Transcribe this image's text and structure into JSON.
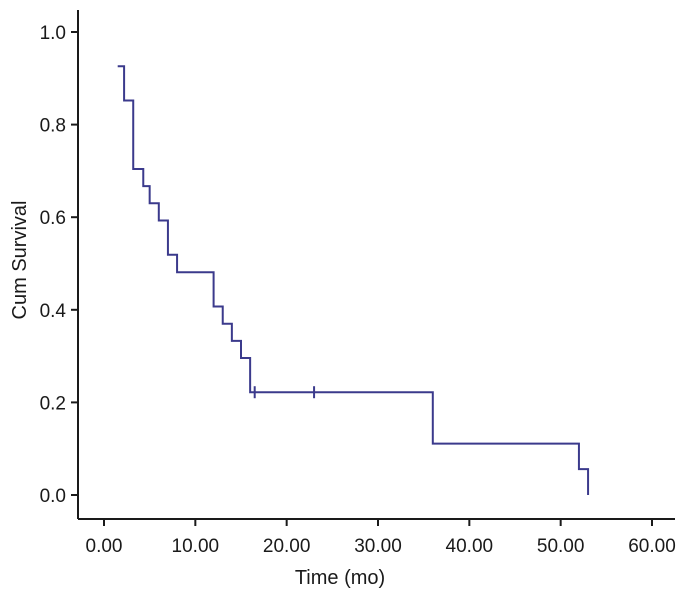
{
  "chart_data": {
    "type": "line",
    "subtype": "kaplan-meier-step",
    "title": "",
    "xlabel": "Time (mo)",
    "ylabel": "Cum Survival",
    "xlim": [
      0,
      60
    ],
    "ylim": [
      0,
      1.0
    ],
    "x_ticks": [
      "0.00",
      "10.00",
      "20.00",
      "30.00",
      "40.00",
      "50.00",
      "60.00"
    ],
    "y_ticks": [
      "0.0",
      "0.2",
      "0.4",
      "0.6",
      "0.8",
      "1.0"
    ],
    "grid": false,
    "legend": "none",
    "line_color": "#3b3a8c",
    "axis_color": "#1a1a1a",
    "series": [
      {
        "steps": [
          {
            "x": 1.5,
            "y": 0.926
          },
          {
            "x": 2.2,
            "y": 0.852
          },
          {
            "x": 3.2,
            "y": 0.704
          },
          {
            "x": 4.3,
            "y": 0.667
          },
          {
            "x": 5.0,
            "y": 0.63
          },
          {
            "x": 6.0,
            "y": 0.593
          },
          {
            "x": 7.0,
            "y": 0.519
          },
          {
            "x": 8.0,
            "y": 0.481
          },
          {
            "x": 12.0,
            "y": 0.407
          },
          {
            "x": 13.0,
            "y": 0.37
          },
          {
            "x": 14.0,
            "y": 0.333
          },
          {
            "x": 15.0,
            "y": 0.296
          },
          {
            "x": 16.0,
            "y": 0.222
          },
          {
            "x": 36.0,
            "y": 0.111
          },
          {
            "x": 52.0,
            "y": 0.056
          },
          {
            "x": 53.0,
            "y": 0.0
          }
        ],
        "censored": [
          {
            "x": 16.5,
            "y": 0.222
          },
          {
            "x": 23.0,
            "y": 0.222
          }
        ]
      }
    ]
  }
}
